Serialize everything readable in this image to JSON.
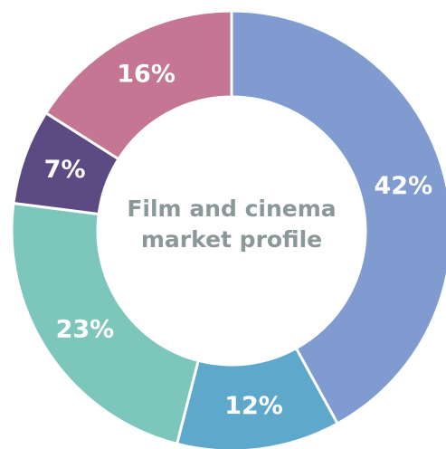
{
  "chart_data": {
    "type": "donut",
    "title": "Film and cinema market profile",
    "values": [
      42,
      12,
      23,
      7,
      16
    ],
    "value_labels": [
      "42%",
      "12%",
      "23%",
      "7%",
      "16%"
    ],
    "colors": [
      "#7f9bd0",
      "#5ea9cb",
      "#7cc6bb",
      "#5c4b83",
      "#c47693"
    ]
  }
}
